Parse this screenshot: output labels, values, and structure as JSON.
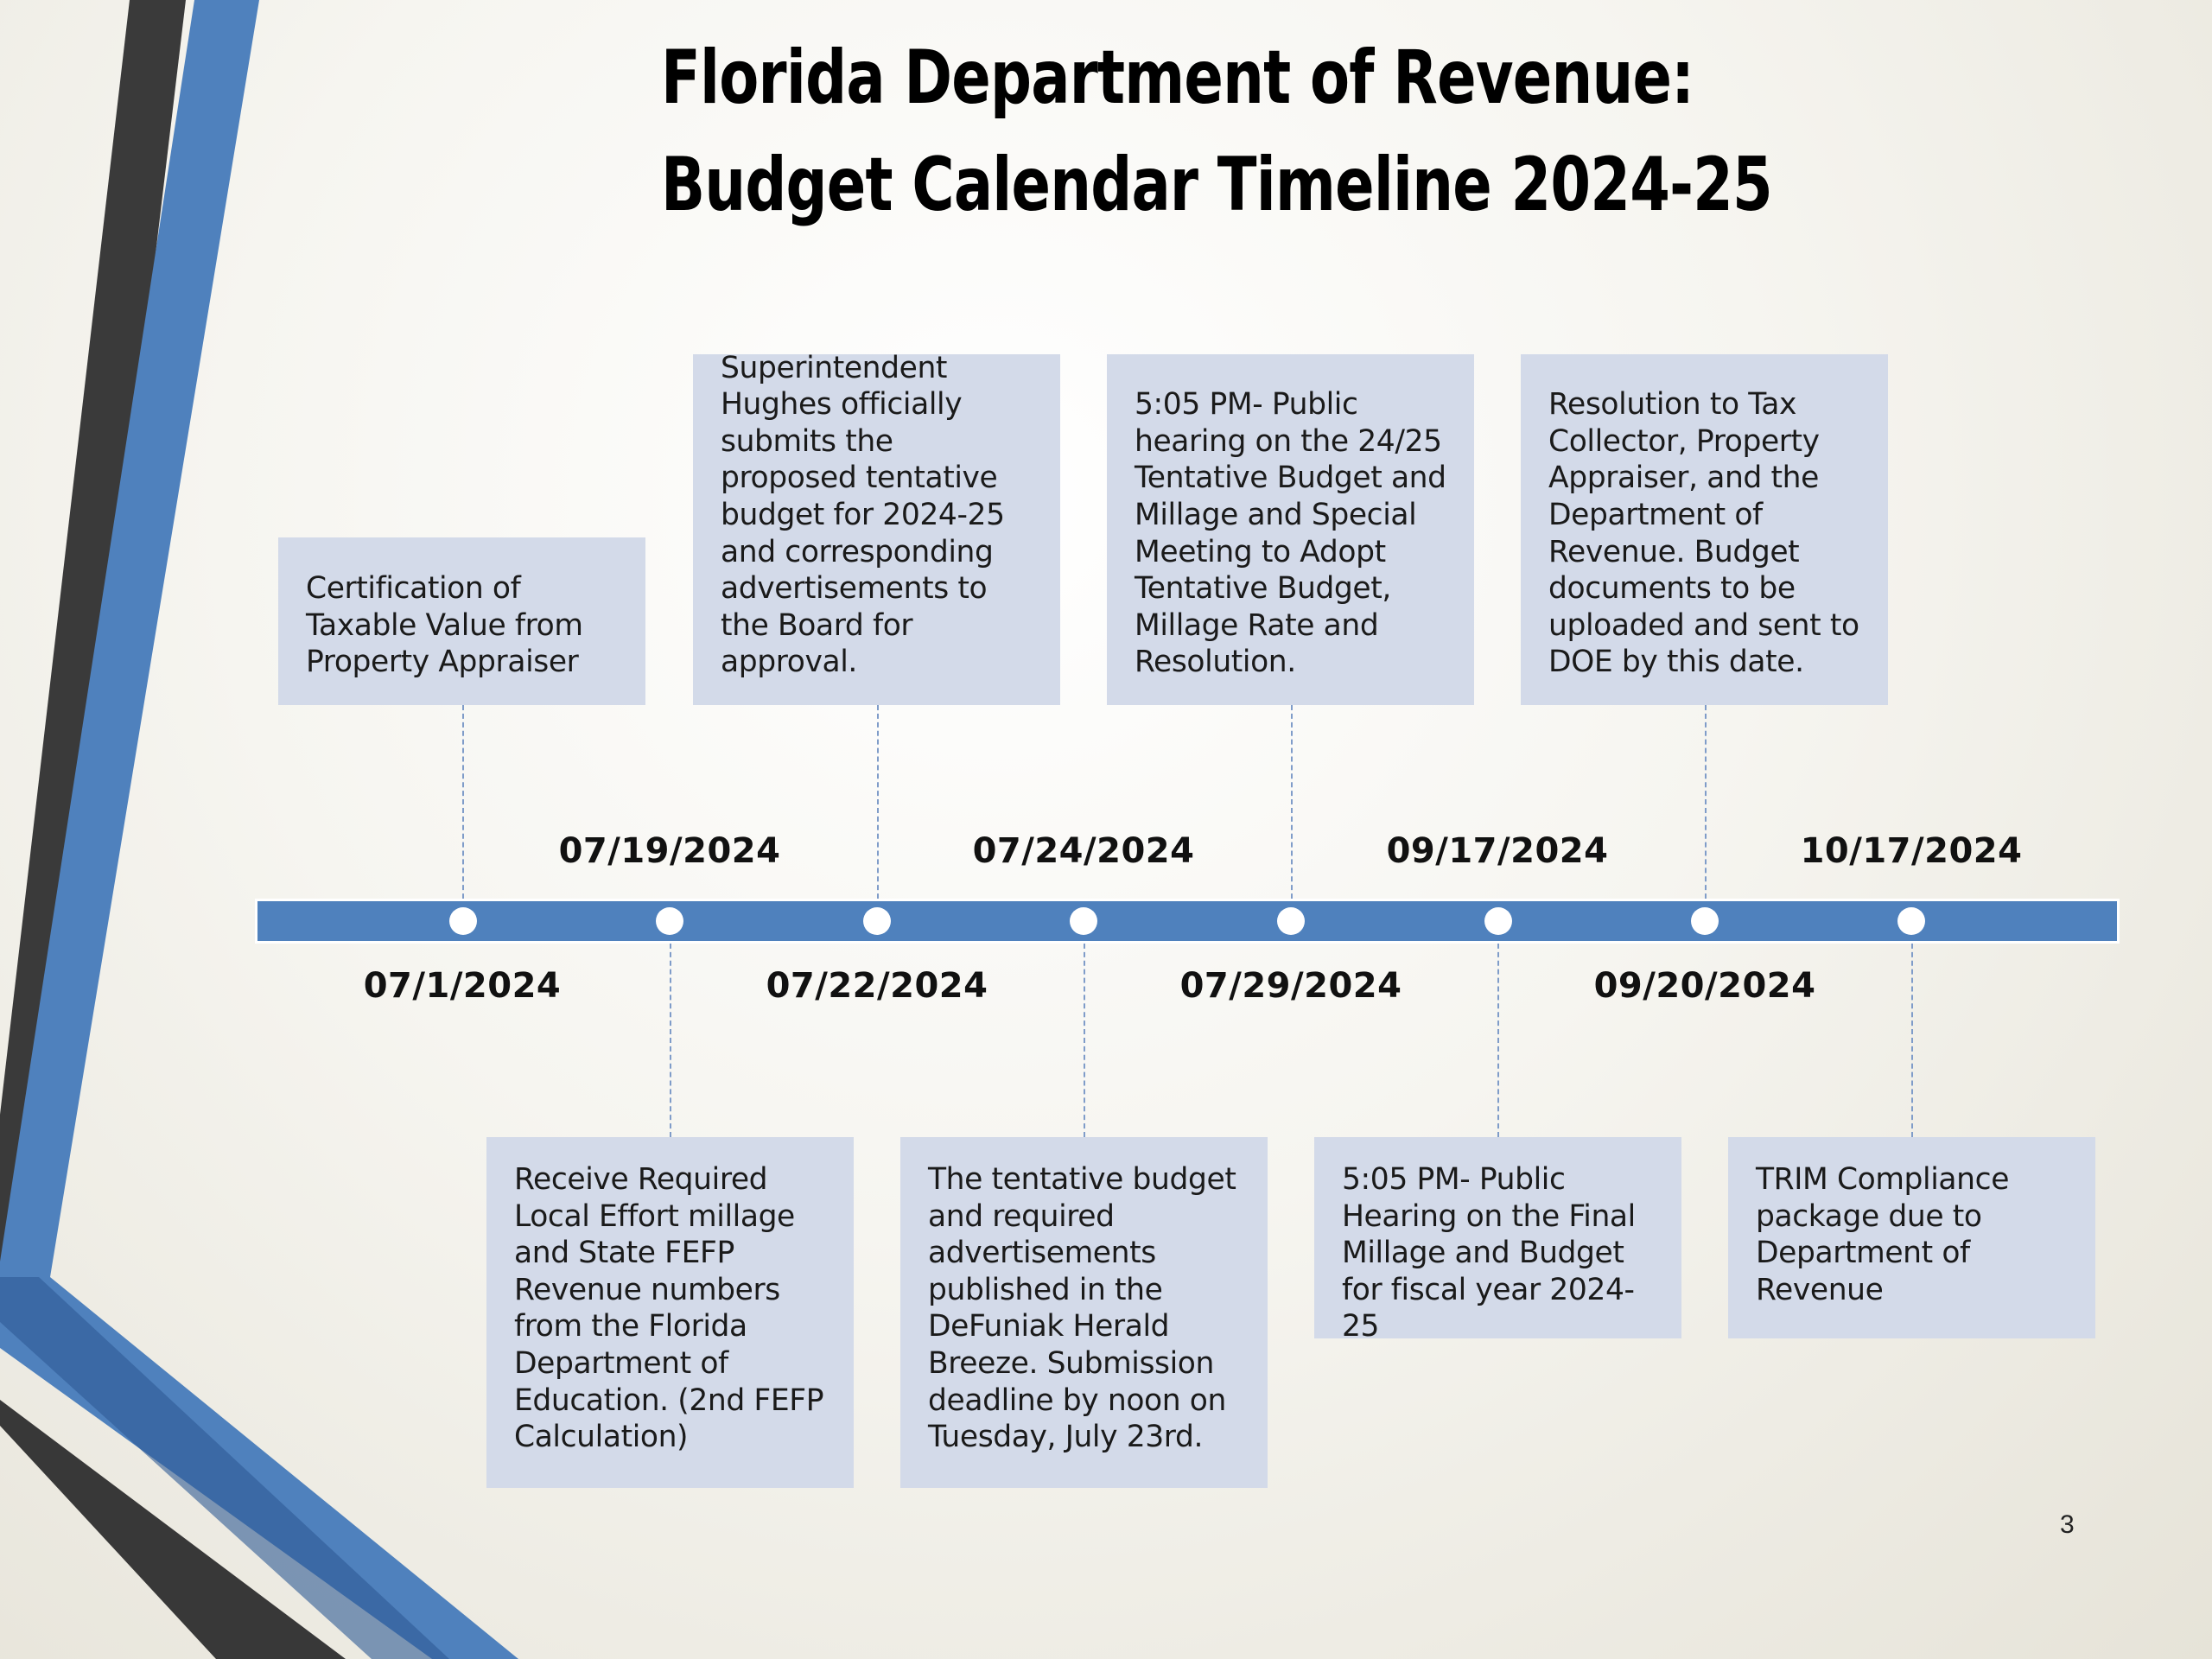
{
  "title": {
    "line1": "Florida Department of Revenue:",
    "line2": "Budget Calendar Timeline 2024-25"
  },
  "timeline": {
    "bar_color": "#4f81bd",
    "card_color": "#d3dae9",
    "events": [
      {
        "date": "07/1/2024",
        "text": "Certification of Taxable Value from Property Appraiser"
      },
      {
        "date": "07/19/2024",
        "text": "Receive Required Local Effort millage and State FEFP Revenue numbers from the Florida Department of Education. (2nd FEFP Calculation)"
      },
      {
        "date": "07/22/2024",
        "text": "Superintendent Hughes officially submits the proposed tentative budget for 2024-25 and corresponding advertisements to the Board for approval."
      },
      {
        "date": "07/24/2024",
        "text": "The tentative budget and required advertisements published in the DeFuniak Herald Breeze. Submission deadline by noon on Tuesday, July 23rd."
      },
      {
        "date": "07/29/2024",
        "text": "5:05 PM- Public hearing on the 24/25 Tentative Budget and Millage and Special Meeting to Adopt Tentative Budget, Millage Rate and Resolution."
      },
      {
        "date": "09/17/2024",
        "text": "5:05 PM- Public Hearing on the Final Millage and Budget for fiscal year 2024-25"
      },
      {
        "date": "09/20/2024",
        "text": "Resolution to Tax Collector, Property Appraiser, and the Department of Revenue.  Budget documents to be uploaded and sent to DOE by this date."
      },
      {
        "date": "10/17/2024",
        "text": "TRIM Compliance package due to Department of Revenue"
      }
    ]
  },
  "page_number": "3"
}
